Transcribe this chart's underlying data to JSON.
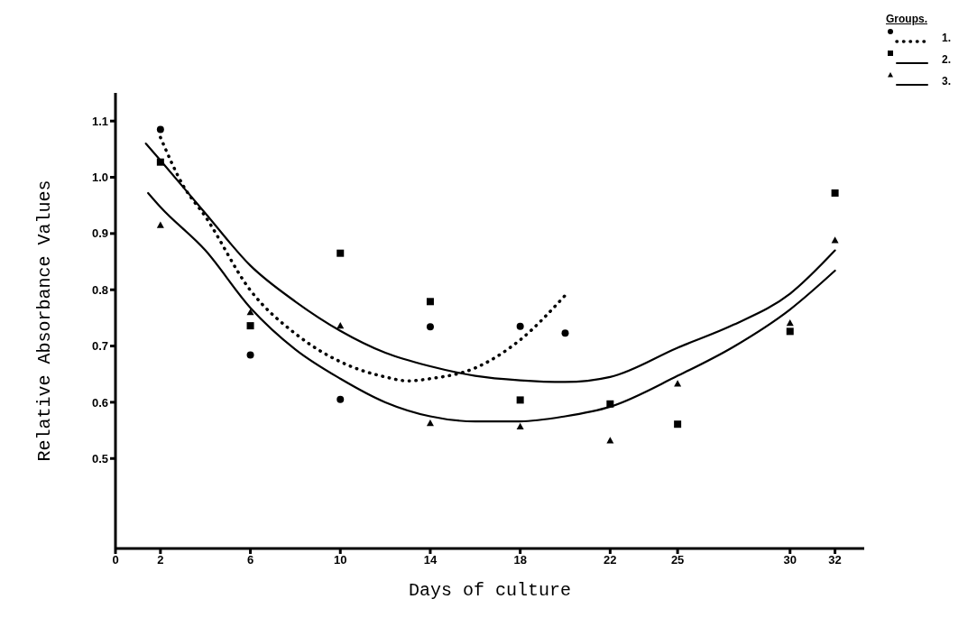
{
  "chart_data": {
    "type": "scatter",
    "xlabel": "Days of culture",
    "ylabel": "Relative Absorbance Values",
    "legend_title": "Groups.",
    "legend": "top right",
    "grid": false,
    "xlim": [
      0,
      33.3
    ],
    "xticks": [
      0,
      2,
      6,
      10,
      14,
      18,
      22,
      25,
      30,
      32
    ],
    "ylim": [
      0.34,
      1.15
    ],
    "yticks": [
      0.5,
      0.6,
      0.7,
      0.8,
      0.9,
      {
        "value": 1,
        "label": "1.0"
      },
      1.1
    ],
    "series": [
      {
        "name": "1.",
        "marker": "circle",
        "color": "#000000",
        "x": [
          2,
          6,
          10,
          14,
          18,
          20
        ],
        "values": [
          1.085,
          0.684,
          0.605,
          0.734,
          0.735,
          0.723
        ]
      },
      {
        "type": "line",
        "line_style": "dotted",
        "color": "#000000",
        "x": [
          2,
          3,
          4,
          6,
          8,
          10,
          12,
          13,
          14,
          16,
          18,
          20
        ],
        "values": [
          1.071,
          0.986,
          0.93,
          0.799,
          0.722,
          0.672,
          0.645,
          0.638,
          0.642,
          0.661,
          0.711,
          0.79
        ]
      },
      {
        "name": "2.",
        "marker": "square",
        "color": "#000000",
        "x": [
          2,
          6,
          10,
          14,
          18,
          22,
          25,
          30,
          32
        ],
        "values": [
          1.027,
          0.736,
          0.865,
          0.779,
          0.604,
          0.597,
          0.561,
          0.726,
          0.972
        ]
      },
      {
        "type": "line",
        "line_style": "solid",
        "color": "#000000",
        "x": [
          1.35,
          2,
          4,
          6,
          8,
          10,
          12,
          14,
          16,
          18,
          20,
          22,
          25,
          27.5,
          30,
          32
        ],
        "values": [
          1.06,
          1.03,
          0.936,
          0.843,
          0.779,
          0.727,
          0.688,
          0.664,
          0.647,
          0.639,
          0.636,
          0.645,
          0.697,
          0.738,
          0.793,
          0.87
        ]
      },
      {
        "name": "3.",
        "marker": "triangle",
        "color": "#000000",
        "x": [
          2,
          6,
          10,
          14,
          18,
          22,
          25,
          30,
          32
        ],
        "values": [
          0.915,
          0.76,
          0.736,
          0.563,
          0.557,
          0.532,
          0.633,
          0.741,
          0.888
        ]
      },
      {
        "type": "line",
        "line_style": "solid",
        "color": "#000000",
        "x": [
          1.45,
          2,
          4,
          6,
          8,
          10,
          12,
          14,
          16,
          18,
          20,
          22,
          25,
          27.5,
          30,
          32
        ],
        "values": [
          0.972,
          0.947,
          0.87,
          0.768,
          0.694,
          0.642,
          0.6,
          0.575,
          0.566,
          0.566,
          0.575,
          0.592,
          0.647,
          0.699,
          0.765,
          0.834
        ]
      }
    ]
  }
}
